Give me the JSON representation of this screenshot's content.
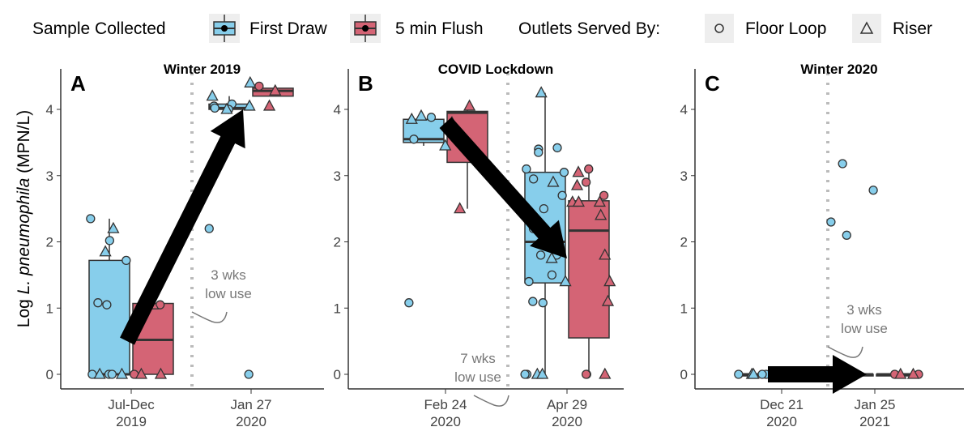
{
  "chart_data": {
    "type": "box",
    "legend": {
      "title_fill": "Sample Collected",
      "fill_items": [
        "First Draw",
        "5 min Flush"
      ],
      "title_shape": "Outlets Served By:",
      "shape_items": [
        "Floor Loop",
        "Riser"
      ],
      "placement": "top"
    },
    "colors": {
      "First Draw": "#87ceeb",
      "5 min Flush": "#d46475"
    },
    "ylabel_prefix": "Log ",
    "ylabel_italic": "L. pneumophila",
    "ylabel_suffix": " (MPN/L)",
    "ylim": [
      0,
      4.5
    ],
    "yticks": [
      "0",
      "1",
      "2",
      "3",
      "4"
    ],
    "panels": [
      {
        "letter": "A",
        "title": "Winter 2019",
        "categories": [
          [
            "Jul-Dec",
            "2019"
          ],
          [
            "Jan 27",
            "2020"
          ]
        ],
        "annotation": [
          "3 wks",
          "low use"
        ],
        "boxes": [
          {
            "cat": 0,
            "group": 0,
            "min": 0,
            "q1": 0,
            "median": 0,
            "q3": 1.72,
            "max": 2.35
          },
          {
            "cat": 0,
            "group": 1,
            "min": 0,
            "q1": 0,
            "median": 0.52,
            "q3": 1.07,
            "max": 1.07
          },
          {
            "cat": 1,
            "group": 0,
            "min": 4.0,
            "q1": 4.0,
            "median": 4.02,
            "q3": 4.08,
            "max": 4.2
          },
          {
            "cat": 1,
            "group": 1,
            "min": 4.2,
            "q1": 4.2,
            "median": 4.28,
            "q3": 4.32,
            "max": 4.32
          }
        ],
        "points": [
          [
            0,
            0,
            "c",
            0
          ],
          [
            0,
            0,
            "c",
            0
          ],
          [
            0,
            0,
            "c",
            0
          ],
          [
            0,
            0,
            "c",
            1.08
          ],
          [
            0,
            0,
            "c",
            1.05
          ],
          [
            0,
            0,
            "c",
            2.02
          ],
          [
            0,
            0,
            "c",
            2.35
          ],
          [
            0,
            0,
            "c",
            1.72
          ],
          [
            0,
            0,
            "t",
            2.2
          ],
          [
            0,
            0,
            "t",
            1.85
          ],
          [
            0,
            0,
            "t",
            0
          ],
          [
            0,
            0,
            "t",
            0
          ],
          [
            0,
            1,
            "c",
            1.05
          ],
          [
            0,
            1,
            "c",
            0
          ],
          [
            0,
            1,
            "t",
            1.05
          ],
          [
            0,
            1,
            "t",
            0
          ],
          [
            0,
            1,
            "t",
            0
          ],
          [
            1,
            0,
            "c",
            4.05
          ],
          [
            1,
            0,
            "c",
            4.08
          ],
          [
            1,
            0,
            "c",
            4.0
          ],
          [
            1,
            0,
            "c",
            4.02
          ],
          [
            1,
            0,
            "c",
            2.2
          ],
          [
            1,
            0,
            "c",
            0
          ],
          [
            1,
            0,
            "t",
            4.4
          ],
          [
            1,
            0,
            "t",
            4.2
          ],
          [
            1,
            0,
            "t",
            4.0
          ],
          [
            1,
            0,
            "t",
            4.05
          ],
          [
            1,
            1,
            "c",
            4.35
          ],
          [
            1,
            1,
            "t",
            4.05
          ],
          [
            1,
            1,
            "t",
            4.28
          ]
        ],
        "arrow": [
          [
            0,
            0.5
          ],
          [
            1,
            4.0
          ]
        ]
      },
      {
        "letter": "B",
        "title": "COVID Lockdown",
        "categories": [
          [
            "Feb 24",
            "2020"
          ],
          [
            "Apr 29",
            "2020"
          ]
        ],
        "annotation": [
          "7 wks",
          "low use"
        ],
        "boxes": [
          {
            "cat": 0,
            "group": 0,
            "min": 3.45,
            "q1": 3.5,
            "median": 3.55,
            "q3": 3.85,
            "max": 3.9
          },
          {
            "cat": 0,
            "group": 1,
            "min": 2.5,
            "q1": 3.2,
            "median": 3.95,
            "q3": 3.97,
            "max": 4.05
          },
          {
            "cat": 1,
            "group": 0,
            "min": 0,
            "q1": 1.38,
            "median": 2.0,
            "q3": 3.05,
            "max": 4.25
          },
          {
            "cat": 1,
            "group": 1,
            "min": 0,
            "q1": 0.55,
            "median": 2.17,
            "q3": 2.62,
            "max": 3.05
          }
        ],
        "points": [
          [
            0,
            0,
            "c",
            3.88
          ],
          [
            0,
            0,
            "c",
            3.55
          ],
          [
            0,
            0,
            "c",
            1.08
          ],
          [
            0,
            0,
            "t",
            3.45
          ],
          [
            0,
            0,
            "t",
            3.9
          ],
          [
            0,
            0,
            "t",
            3.85
          ],
          [
            0,
            1,
            "t",
            4.05
          ],
          [
            0,
            1,
            "t",
            2.5
          ],
          [
            0,
            1,
            "t",
            3.8
          ],
          [
            1,
            0,
            "c",
            3.42
          ],
          [
            1,
            0,
            "c",
            3.4
          ],
          [
            1,
            0,
            "c",
            3.35
          ],
          [
            1,
            0,
            "c",
            3.1
          ],
          [
            1,
            0,
            "c",
            3.05
          ],
          [
            1,
            0,
            "c",
            2.95
          ],
          [
            1,
            0,
            "c",
            2.7
          ],
          [
            1,
            0,
            "c",
            2.5
          ],
          [
            1,
            0,
            "c",
            2.2
          ],
          [
            1,
            0,
            "c",
            2.0
          ],
          [
            1,
            0,
            "c",
            1.8
          ],
          [
            1,
            0,
            "c",
            1.8
          ],
          [
            1,
            0,
            "c",
            1.5
          ],
          [
            1,
            0,
            "c",
            1.4
          ],
          [
            1,
            0,
            "c",
            1.1
          ],
          [
            1,
            0,
            "c",
            1.08
          ],
          [
            1,
            0,
            "c",
            0
          ],
          [
            1,
            0,
            "c",
            0
          ],
          [
            1,
            0,
            "t",
            4.25
          ],
          [
            1,
            0,
            "t",
            2.9
          ],
          [
            1,
            0,
            "t",
            1.75
          ],
          [
            1,
            0,
            "t",
            1.4
          ],
          [
            1,
            0,
            "t",
            0
          ],
          [
            1,
            0,
            "t",
            0
          ],
          [
            1,
            1,
            "c",
            3.1
          ],
          [
            1,
            1,
            "c",
            2.9
          ],
          [
            1,
            1,
            "c",
            2.7
          ],
          [
            1,
            1,
            "c",
            0
          ],
          [
            1,
            1,
            "c",
            0
          ],
          [
            1,
            1,
            "t",
            3.05
          ],
          [
            1,
            1,
            "t",
            2.85
          ],
          [
            1,
            1,
            "t",
            2.6
          ],
          [
            1,
            1,
            "t",
            2.6
          ],
          [
            1,
            1,
            "t",
            2.6
          ],
          [
            1,
            1,
            "t",
            2.4
          ],
          [
            1,
            1,
            "t",
            1.8
          ],
          [
            1,
            1,
            "t",
            1.4
          ],
          [
            1,
            1,
            "t",
            1.1
          ],
          [
            1,
            1,
            "t",
            0
          ]
        ],
        "arrow": [
          [
            0,
            3.8
          ],
          [
            1,
            1.75
          ]
        ]
      },
      {
        "letter": "C",
        "title": "Winter 2020",
        "categories": [
          [
            "Dec 21",
            "2020"
          ],
          [
            "Jan 25",
            "2021"
          ]
        ],
        "annotation": [
          "3 wks",
          "low use"
        ],
        "boxes": [
          {
            "cat": 0,
            "group": 0,
            "min": 0,
            "q1": 0,
            "median": 0,
            "q3": 0,
            "max": 0
          },
          {
            "cat": 0,
            "group": 1,
            "min": 0,
            "q1": 0,
            "median": 0,
            "q3": 0,
            "max": 0
          },
          {
            "cat": 1,
            "group": 0,
            "min": 0,
            "q1": 0,
            "median": 0,
            "q3": 0,
            "max": 0
          },
          {
            "cat": 1,
            "group": 1,
            "min": 0,
            "q1": 0,
            "median": 0,
            "q3": 0,
            "max": 0
          }
        ],
        "points": [
          [
            0,
            0,
            "c",
            0
          ],
          [
            0,
            0,
            "c",
            0
          ],
          [
            0,
            0,
            "c",
            0
          ],
          [
            0,
            0,
            "c",
            0
          ],
          [
            0,
            0,
            "t",
            0
          ],
          [
            0,
            0,
            "t",
            0
          ],
          [
            0,
            1,
            "c",
            0
          ],
          [
            0,
            1,
            "c",
            0
          ],
          [
            0,
            1,
            "t",
            0
          ],
          [
            0,
            1,
            "t",
            0
          ],
          [
            1,
            0,
            "c",
            3.18
          ],
          [
            1,
            0,
            "c",
            2.78
          ],
          [
            1,
            0,
            "c",
            2.3
          ],
          [
            1,
            0,
            "c",
            2.1
          ],
          [
            1,
            0,
            "c",
            0
          ],
          [
            1,
            0,
            "t",
            0
          ],
          [
            1,
            0,
            "t",
            0
          ],
          [
            1,
            1,
            "c",
            0
          ],
          [
            1,
            1,
            "c",
            0
          ],
          [
            1,
            1,
            "t",
            0
          ],
          [
            1,
            1,
            "t",
            0
          ]
        ],
        "arrow": [
          [
            0,
            0
          ],
          [
            1,
            0
          ]
        ]
      }
    ]
  }
}
